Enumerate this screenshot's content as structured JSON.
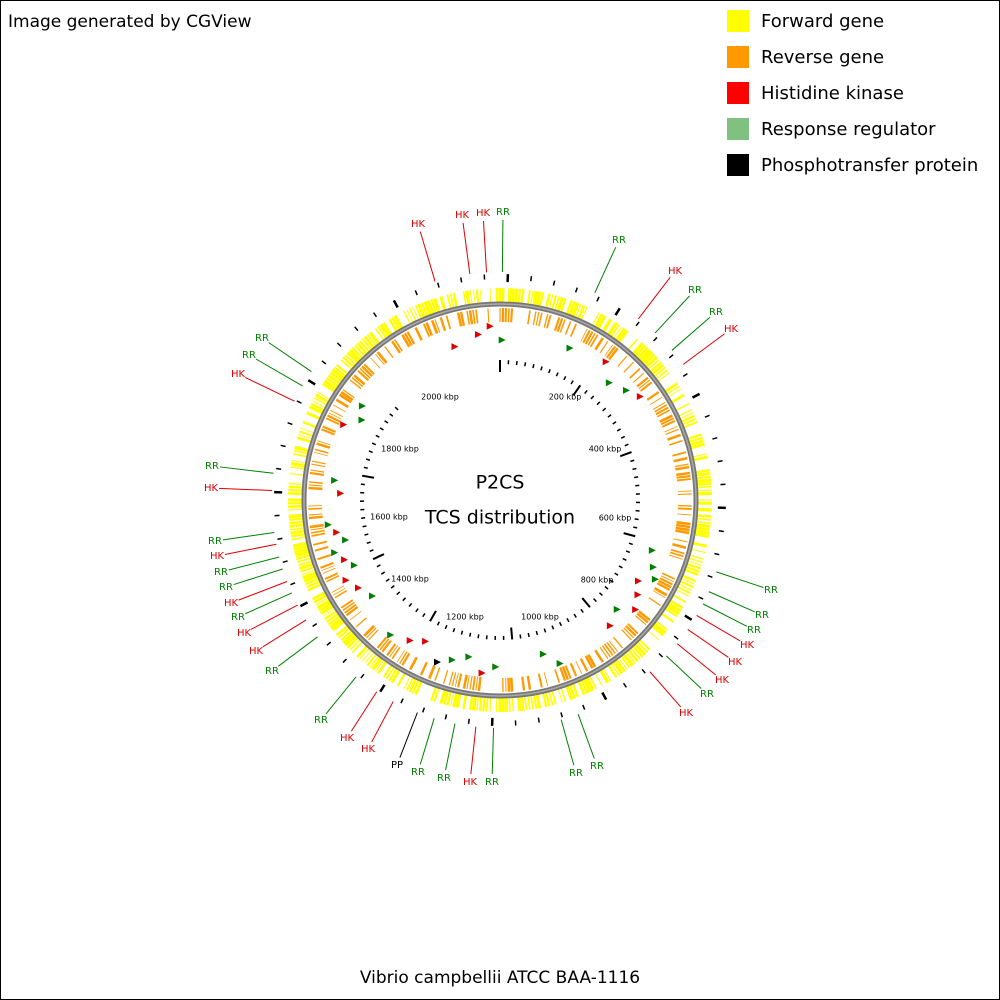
{
  "header": {
    "title": "Image generated by CGView"
  },
  "legend": [
    {
      "label": "Forward gene",
      "color": "#ffff00"
    },
    {
      "label": "Reverse gene",
      "color": "#ff9900"
    },
    {
      "label": "Histidine kinase",
      "color": "#ff0000"
    },
    {
      "label": "Response regulator",
      "color": "#80c080"
    },
    {
      "label": "Phosphotransfer protein",
      "color": "#000000"
    }
  ],
  "center": {
    "title": "P2CS",
    "subtitle": "TCS distribution"
  },
  "ruler_labels": [
    "200 kbp",
    "400 kbp",
    "600 kbp",
    "800 kbp",
    "1000 kbp",
    "1200 kbp",
    "1400 kbp",
    "1600 kbp",
    "1800 kbp",
    "2000 kbp"
  ],
  "features": [
    {
      "label": "HK",
      "color": "#e00000"
    },
    {
      "label": "HK",
      "color": "#e00000"
    },
    {
      "label": "HK",
      "color": "#e00000"
    },
    {
      "label": "RR",
      "color": "#008000"
    },
    {
      "label": "RR",
      "color": "#008000"
    },
    {
      "label": "HK",
      "color": "#e00000"
    },
    {
      "label": "RR",
      "color": "#008000"
    },
    {
      "label": "RR",
      "color": "#008000"
    },
    {
      "label": "HK",
      "color": "#e00000"
    },
    {
      "label": "RR",
      "color": "#008000"
    },
    {
      "label": "RR",
      "color": "#008000"
    },
    {
      "label": "RR",
      "color": "#008000"
    },
    {
      "label": "HK",
      "color": "#e00000"
    },
    {
      "label": "HK",
      "color": "#e00000"
    },
    {
      "label": "HK",
      "color": "#e00000"
    },
    {
      "label": "RR",
      "color": "#008000"
    },
    {
      "label": "HK",
      "color": "#e00000"
    },
    {
      "label": "RR",
      "color": "#008000"
    },
    {
      "label": "RR",
      "color": "#008000"
    },
    {
      "label": "RR",
      "color": "#008000"
    },
    {
      "label": "HK",
      "color": "#e00000"
    },
    {
      "label": "RR",
      "color": "#008000"
    },
    {
      "label": "RR",
      "color": "#008000"
    },
    {
      "label": "PP",
      "color": "#000000"
    },
    {
      "label": "HK",
      "color": "#e00000"
    },
    {
      "label": "HK",
      "color": "#e00000"
    },
    {
      "label": "RR",
      "color": "#008000"
    },
    {
      "label": "RR",
      "color": "#008000"
    },
    {
      "label": "HK",
      "color": "#e00000"
    },
    {
      "label": "HK",
      "color": "#e00000"
    },
    {
      "label": "RR",
      "color": "#008000"
    },
    {
      "label": "HK",
      "color": "#e00000"
    },
    {
      "label": "RR",
      "color": "#008000"
    },
    {
      "label": "RR",
      "color": "#008000"
    },
    {
      "label": "HK",
      "color": "#e00000"
    },
    {
      "label": "RR",
      "color": "#008000"
    },
    {
      "label": "HK",
      "color": "#e00000"
    },
    {
      "label": "RR",
      "color": "#008000"
    },
    {
      "label": "HK",
      "color": "#e00000"
    },
    {
      "label": "RR",
      "color": "#008000"
    },
    {
      "label": "RR",
      "color": "#008000"
    }
  ],
  "footer": {
    "caption": "Vibrio campbellii ATCC BAA-1116"
  }
}
